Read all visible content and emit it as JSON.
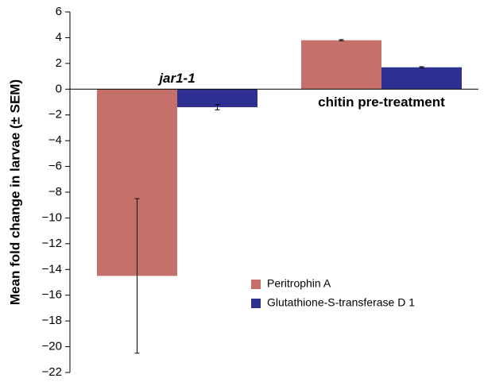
{
  "chart_data": {
    "type": "bar",
    "y_label": "Mean fold change in larvae (± SEM)",
    "categories": [
      "jar1-1",
      "chitin pre-treatment"
    ],
    "series": [
      {
        "name": "Peritrophin A",
        "color": "#c5706a",
        "values": [
          -14.5,
          3.8
        ],
        "errors": [
          6,
          0.05
        ]
      },
      {
        "name": "Glutathione-S-transferase D 1",
        "color": "#2e3192",
        "values": [
          -1.4,
          1.7
        ],
        "errors": [
          0.2,
          0.05
        ]
      }
    ],
    "ylim": [
      -22,
      6
    ],
    "yticks": [
      {
        "value": -22,
        "label": "−22"
      },
      {
        "value": -20,
        "label": "−20"
      },
      {
        "value": -18,
        "label": "−18"
      },
      {
        "value": -16,
        "label": "−16"
      },
      {
        "value": -14,
        "label": "−14"
      },
      {
        "value": -12,
        "label": "−12"
      },
      {
        "value": -10,
        "label": "−10"
      },
      {
        "value": -8,
        "label": "−8"
      },
      {
        "value": -6,
        "label": "−6"
      },
      {
        "value": -4,
        "label": "−4"
      },
      {
        "value": -2,
        "label": "−2"
      },
      0,
      2,
      4,
      6
    ],
    "legend": "lower right"
  }
}
